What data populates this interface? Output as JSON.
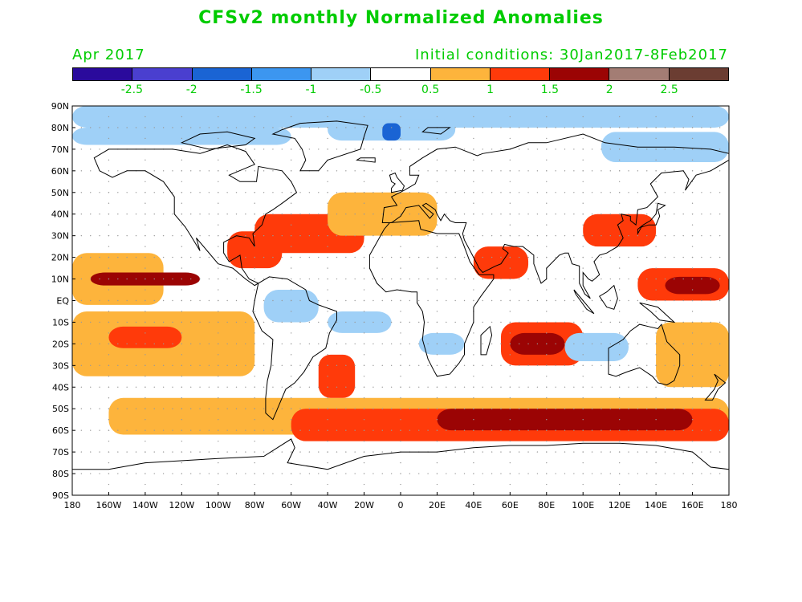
{
  "title": "CFSv2 monthly Normalized Anomalies",
  "valid_month": "Apr 2017",
  "initial_conditions": "Initial conditions: 30Jan2017-8Feb2017",
  "colors": {
    "text": "#00cc00",
    "ocean_white": "#ffffff",
    "coast": "#000000",
    "grid_dot": "#999999"
  },
  "colorbar": {
    "colors": [
      "#2a0a9c",
      "#4a3fcf",
      "#1a64d4",
      "#3c96f0",
      "#9fd0f7",
      "#ffffff",
      "#fdb43c",
      "#ff3a0a",
      "#9b0404",
      "#a37d74",
      "#6b3d32"
    ],
    "labels": [
      "-2.5",
      "-2",
      "-1.5",
      "-1",
      "-0.5",
      "0.5",
      "1",
      "1.5",
      "2",
      "2.5"
    ]
  },
  "axes": {
    "lat_labels": [
      "90N",
      "80N",
      "70N",
      "60N",
      "50N",
      "40N",
      "30N",
      "20N",
      "10N",
      "EQ",
      "10S",
      "20S",
      "30S",
      "40S",
      "50S",
      "60S",
      "70S",
      "80S",
      "90S"
    ],
    "lon_labels": [
      "180",
      "160W",
      "140W",
      "120W",
      "100W",
      "80W",
      "60W",
      "40W",
      "20W",
      "0",
      "20E",
      "40E",
      "60E",
      "80E",
      "100E",
      "120E",
      "140E",
      "160E",
      "180"
    ]
  },
  "chart_data": {
    "type": "heatmap",
    "title": "CFSv2 monthly Normalized Anomalies",
    "subtitle": "Apr 2017",
    "note": "Initial conditions: 30Jan2017-8Feb2017",
    "x_range": [
      -180,
      180
    ],
    "y_range": [
      -90,
      90
    ],
    "levels": [
      -2.5,
      -2,
      -1.5,
      -1,
      -0.5,
      0.5,
      1,
      1.5,
      2,
      2.5
    ],
    "anomaly_regions": [
      {
        "lon": [
          -180,
          180
        ],
        "lat": [
          80,
          90
        ],
        "value": -0.7
      },
      {
        "lon": [
          -180,
          -60
        ],
        "lat": [
          72,
          80
        ],
        "value": -0.7
      },
      {
        "lon": [
          -40,
          30
        ],
        "lat": [
          74,
          84
        ],
        "value": -0.7
      },
      {
        "lon": [
          -10,
          0
        ],
        "lat": [
          74,
          82
        ],
        "value": -1.7
      },
      {
        "lon": [
          110,
          180
        ],
        "lat": [
          64,
          78
        ],
        "value": -0.7
      },
      {
        "lon": [
          -180,
          -130
        ],
        "lat": [
          -2,
          22
        ],
        "value": 0.8
      },
      {
        "lon": [
          -170,
          -110
        ],
        "lat": [
          7,
          13
        ],
        "value": 1.8
      },
      {
        "lon": [
          -180,
          -80
        ],
        "lat": [
          -35,
          -5
        ],
        "value": 0.7
      },
      {
        "lon": [
          -160,
          -120
        ],
        "lat": [
          -22,
          -12
        ],
        "value": 1.2
      },
      {
        "lon": [
          -95,
          -65
        ],
        "lat": [
          15,
          32
        ],
        "value": 1.2
      },
      {
        "lon": [
          -80,
          -20
        ],
        "lat": [
          22,
          40
        ],
        "value": 1.1
      },
      {
        "lon": [
          -40,
          20
        ],
        "lat": [
          30,
          50
        ],
        "value": 0.7
      },
      {
        "lon": [
          -160,
          180
        ],
        "lat": [
          -62,
          -45
        ],
        "value": 0.8
      },
      {
        "lon": [
          -60,
          180
        ],
        "lat": [
          -65,
          -50
        ],
        "value": 1.2
      },
      {
        "lon": [
          20,
          160
        ],
        "lat": [
          -60,
          -50
        ],
        "value": 1.8
      },
      {
        "lon": [
          55,
          100
        ],
        "lat": [
          -30,
          -10
        ],
        "value": 1.0
      },
      {
        "lon": [
          60,
          90
        ],
        "lat": [
          -25,
          -15
        ],
        "value": 1.5
      },
      {
        "lon": [
          90,
          125
        ],
        "lat": [
          -28,
          -15
        ],
        "value": -0.7
      },
      {
        "lon": [
          -40,
          -5
        ],
        "lat": [
          -15,
          -5
        ],
        "value": -0.7
      },
      {
        "lon": [
          10,
          35
        ],
        "lat": [
          -25,
          -15
        ],
        "value": -0.8
      },
      {
        "lon": [
          -75,
          -45
        ],
        "lat": [
          -10,
          5
        ],
        "value": -0.7
      },
      {
        "lon": [
          -45,
          -25
        ],
        "lat": [
          -45,
          -25
        ],
        "value": 1.1
      },
      {
        "lon": [
          130,
          180
        ],
        "lat": [
          0,
          15
        ],
        "value": 1.0
      },
      {
        "lon": [
          145,
          175
        ],
        "lat": [
          3,
          11
        ],
        "value": 1.7
      },
      {
        "lon": [
          100,
          140
        ],
        "lat": [
          25,
          40
        ],
        "value": 1.0
      },
      {
        "lon": [
          40,
          70
        ],
        "lat": [
          10,
          25
        ],
        "value": 1.0
      },
      {
        "lon": [
          140,
          180
        ],
        "lat": [
          -40,
          -10
        ],
        "value": 0.8
      }
    ]
  }
}
